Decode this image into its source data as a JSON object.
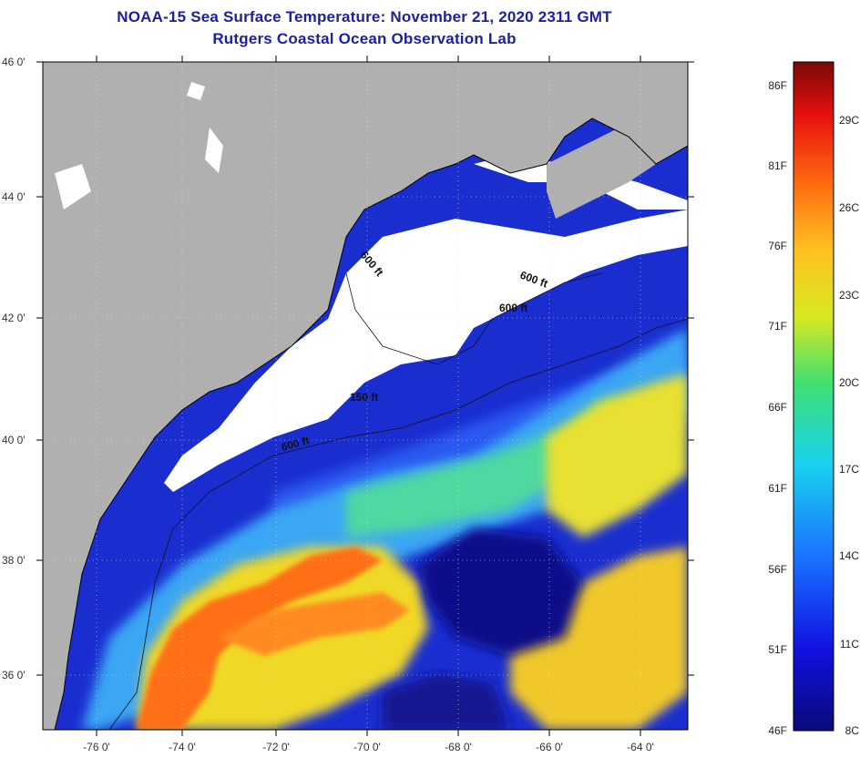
{
  "title": {
    "line1": "NOAA-15 Sea Surface Temperature:  November 21, 2020 2311 GMT",
    "line2": "Rutgers Coastal Ocean Observation Lab"
  },
  "lat_labels": [
    "46 0'",
    "44 0'",
    "42 0'",
    "40 0'",
    "38 0'",
    "36 0'"
  ],
  "lon_labels": [
    "-76 0'",
    "-74 0'",
    "-72 0'",
    "-70 0'",
    "-68 0'",
    "-66 0'",
    "-64 0'"
  ],
  "contours": [
    "600 ft",
    "600 ft",
    "600 ft",
    "150 ft",
    "600 ft"
  ],
  "colorbar": {
    "f_labels": [
      "86F",
      "81F",
      "76F",
      "71F",
      "66F",
      "61F",
      "56F",
      "51F",
      "46F"
    ],
    "c_labels": [
      "29C",
      "26C",
      "23C",
      "20C",
      "17C",
      "14C",
      "11C",
      "8C"
    ]
  },
  "colors": {
    "title": "#1a20a8",
    "land": "#b0b0b0",
    "cloud": "#ffffff",
    "cold": "#1a1aa0",
    "warm": "#ff6a10"
  }
}
